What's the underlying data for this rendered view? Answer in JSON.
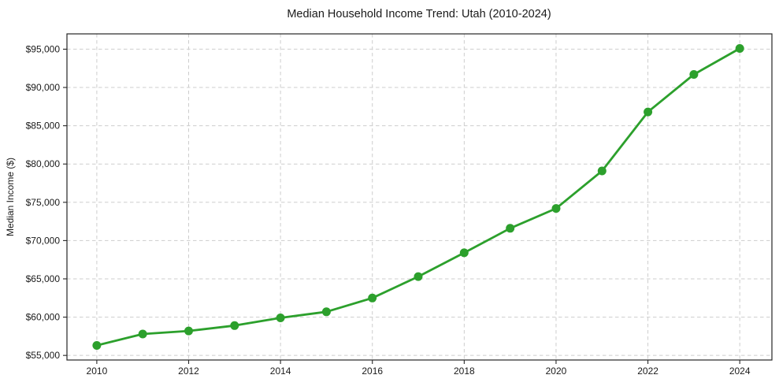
{
  "chart_data": {
    "type": "line",
    "title": "Median Household Income Trend: Utah (2010-2024)",
    "xlabel": "",
    "ylabel": "Median Income ($)",
    "x": [
      2010,
      2011,
      2012,
      2013,
      2014,
      2015,
      2016,
      2017,
      2018,
      2019,
      2020,
      2021,
      2022,
      2023,
      2024
    ],
    "values": [
      56300,
      57800,
      58200,
      58900,
      59900,
      60700,
      62500,
      65300,
      68400,
      71600,
      74200,
      79100,
      86800,
      91700,
      95100
    ],
    "xticks": [
      2010,
      2012,
      2014,
      2016,
      2018,
      2020,
      2022,
      2024
    ],
    "yticks": [
      55000,
      60000,
      65000,
      70000,
      75000,
      80000,
      85000,
      90000,
      95000
    ],
    "ytick_labels": [
      "$55,000",
      "$60,000",
      "$65,000",
      "$70,000",
      "$75,000",
      "$80,000",
      "$85,000",
      "$90,000",
      "$95,000"
    ],
    "xlim": [
      2009.35,
      2024.7
    ],
    "ylim": [
      54400,
      97000
    ],
    "grid": true,
    "legend_position": "none",
    "marker": "circle",
    "colors": {
      "line": "#2ca02c",
      "marker": "#2ca02c",
      "grid": "#cdcdcd",
      "axis": "#262626",
      "text": "#1a1a1a",
      "background": "#ffffff"
    }
  }
}
